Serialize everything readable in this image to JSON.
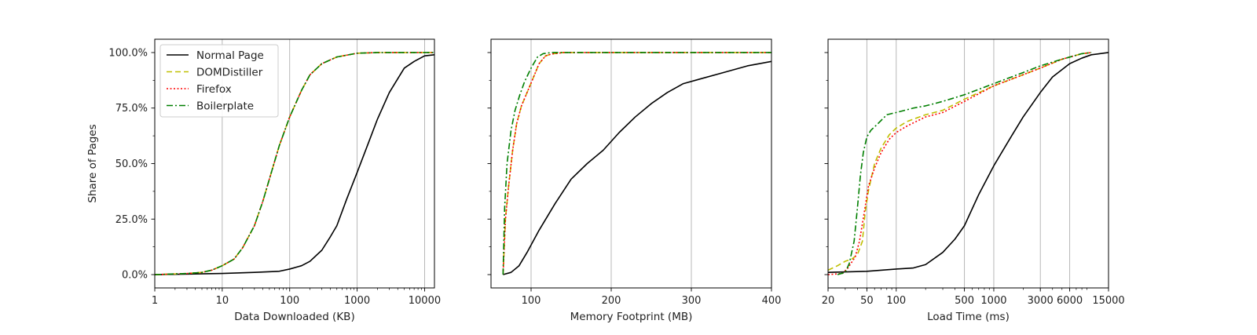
{
  "chart_data": [
    {
      "type": "line",
      "xlabel": "Data Downloaded (KB)",
      "ylabel": "Share of Pages",
      "xscale": "log",
      "xlim": [
        1,
        14000
      ],
      "ylim": [
        -0.06,
        1.06
      ],
      "xticks": [
        {
          "value": 1,
          "label": "1"
        },
        {
          "value": 10,
          "label": "10"
        },
        {
          "value": 100,
          "label": "100"
        },
        {
          "value": 1000,
          "label": "1000"
        },
        {
          "value": 10000,
          "label": "10000"
        }
      ],
      "yticks": [
        {
          "value": 0,
          "label": "0.0%"
        },
        {
          "value": 0.25,
          "label": "25.0%"
        },
        {
          "value": 0.5,
          "label": "50.0%"
        },
        {
          "value": 0.75,
          "label": "75.0%"
        },
        {
          "value": 1.0,
          "label": "100.0%"
        }
      ],
      "grid": "x",
      "legend_position": "top-left",
      "series": [
        {
          "name": "Normal Page",
          "color": "#000000",
          "style": "solid",
          "x": [
            1,
            10,
            30,
            70,
            100,
            150,
            200,
            300,
            400,
            500,
            700,
            1000,
            1500,
            2000,
            3000,
            5000,
            7000,
            10000,
            14000
          ],
          "y": [
            0,
            0.005,
            0.01,
            0.015,
            0.025,
            0.04,
            0.06,
            0.11,
            0.17,
            0.22,
            0.34,
            0.46,
            0.6,
            0.7,
            0.82,
            0.93,
            0.96,
            0.985,
            0.99
          ]
        },
        {
          "name": "DOMDistiller",
          "color": "#bfbf00",
          "style": "dashed",
          "x": [
            1,
            3,
            5,
            7,
            10,
            15,
            20,
            30,
            40,
            50,
            70,
            100,
            150,
            200,
            300,
            500,
            1000,
            2000,
            14000
          ],
          "y": [
            0,
            0.005,
            0.01,
            0.02,
            0.04,
            0.07,
            0.12,
            0.22,
            0.33,
            0.43,
            0.58,
            0.71,
            0.83,
            0.9,
            0.95,
            0.98,
            0.997,
            1.0,
            1.0
          ]
        },
        {
          "name": "Firefox",
          "color": "#ff0000",
          "style": "dotted",
          "x": [
            1,
            3,
            5,
            7,
            10,
            15,
            20,
            30,
            40,
            50,
            70,
            100,
            150,
            200,
            300,
            500,
            1000,
            2000,
            14000
          ],
          "y": [
            0,
            0.005,
            0.01,
            0.02,
            0.04,
            0.07,
            0.12,
            0.22,
            0.33,
            0.43,
            0.58,
            0.71,
            0.83,
            0.9,
            0.95,
            0.98,
            0.997,
            1.0,
            1.0
          ]
        },
        {
          "name": "Boilerplate",
          "color": "#007f00",
          "style": "dashdot",
          "x": [
            1,
            3,
            5,
            7,
            10,
            15,
            20,
            30,
            40,
            50,
            70,
            100,
            150,
            200,
            300,
            500,
            1000,
            2000,
            14000
          ],
          "y": [
            0,
            0.005,
            0.01,
            0.02,
            0.04,
            0.07,
            0.12,
            0.22,
            0.33,
            0.43,
            0.58,
            0.71,
            0.83,
            0.9,
            0.95,
            0.98,
            0.997,
            1.0,
            1.0
          ]
        }
      ]
    },
    {
      "type": "line",
      "xlabel": "Memory Footprint (MB)",
      "ylabel": "",
      "xscale": "linear",
      "xlim": [
        50,
        400
      ],
      "ylim": [
        -0.06,
        1.06
      ],
      "xticks": [
        {
          "value": 100,
          "label": "100"
        },
        {
          "value": 200,
          "label": "200"
        },
        {
          "value": 300,
          "label": "300"
        },
        {
          "value": 400,
          "label": "400"
        }
      ],
      "yticks": [
        {
          "value": 0,
          "label": ""
        },
        {
          "value": 0.25,
          "label": ""
        },
        {
          "value": 0.5,
          "label": ""
        },
        {
          "value": 0.75,
          "label": ""
        },
        {
          "value": 1.0,
          "label": ""
        }
      ],
      "grid": "x",
      "series": [
        {
          "name": "Normal Page",
          "color": "#000000",
          "style": "solid",
          "x": [
            65,
            75,
            85,
            95,
            110,
            130,
            150,
            170,
            190,
            210,
            230,
            250,
            270,
            290,
            310,
            340,
            370,
            400
          ],
          "y": [
            0,
            0.01,
            0.04,
            0.1,
            0.2,
            0.32,
            0.43,
            0.5,
            0.56,
            0.64,
            0.71,
            0.77,
            0.82,
            0.86,
            0.88,
            0.91,
            0.94,
            0.96
          ]
        },
        {
          "name": "DOMDistiller",
          "color": "#bfbf00",
          "style": "dashed",
          "x": [
            65,
            68,
            72,
            77,
            82,
            88,
            95,
            102,
            110,
            118,
            125,
            140,
            400
          ],
          "y": [
            0,
            0.25,
            0.4,
            0.56,
            0.68,
            0.76,
            0.82,
            0.88,
            0.95,
            0.985,
            0.993,
            1.0,
            1.0
          ]
        },
        {
          "name": "Firefox",
          "color": "#ff0000",
          "style": "dotted",
          "x": [
            65,
            68,
            72,
            77,
            82,
            88,
            95,
            102,
            110,
            118,
            125,
            140,
            400
          ],
          "y": [
            0,
            0.25,
            0.4,
            0.56,
            0.68,
            0.76,
            0.82,
            0.88,
            0.95,
            0.985,
            0.993,
            1.0,
            1.0
          ]
        },
        {
          "name": "Boilerplate",
          "color": "#007f00",
          "style": "dashdot",
          "x": [
            65,
            67,
            70,
            75,
            80,
            86,
            92,
            100,
            108,
            115,
            125,
            400
          ],
          "y": [
            0,
            0.3,
            0.5,
            0.65,
            0.74,
            0.81,
            0.87,
            0.93,
            0.98,
            0.995,
            1.0,
            1.0
          ]
        }
      ]
    },
    {
      "type": "line",
      "xlabel": "Load Time (ms)",
      "ylabel": "",
      "xscale": "log",
      "xlim": [
        20,
        15000
      ],
      "ylim": [
        -0.06,
        1.06
      ],
      "xticks": [
        {
          "value": 20,
          "label": "20"
        },
        {
          "value": 50,
          "label": "50"
        },
        {
          "value": 100,
          "label": "100"
        },
        {
          "value": 500,
          "label": "500"
        },
        {
          "value": 1000,
          "label": "1000"
        },
        {
          "value": 3000,
          "label": "3000"
        },
        {
          "value": 6000,
          "label": "6000"
        },
        {
          "value": 15000,
          "label": "15000"
        }
      ],
      "yticks": [
        {
          "value": 0,
          "label": ""
        },
        {
          "value": 0.25,
          "label": ""
        },
        {
          "value": 0.5,
          "label": ""
        },
        {
          "value": 0.75,
          "label": ""
        },
        {
          "value": 1.0,
          "label": ""
        }
      ],
      "grid": "x",
      "series": [
        {
          "name": "Normal Page",
          "color": "#000000",
          "style": "solid",
          "x": [
            20,
            50,
            100,
            150,
            200,
            300,
            400,
            500,
            700,
            1000,
            1500,
            2000,
            3000,
            4000,
            6000,
            8000,
            10000,
            15000
          ],
          "y": [
            0.01,
            0.015,
            0.025,
            0.03,
            0.045,
            0.1,
            0.16,
            0.22,
            0.36,
            0.49,
            0.62,
            0.71,
            0.82,
            0.89,
            0.95,
            0.975,
            0.99,
            1.0
          ]
        },
        {
          "name": "DOMDistiller",
          "color": "#bfbf00",
          "style": "dashed",
          "x": [
            20,
            25,
            30,
            35,
            40,
            45,
            48,
            52,
            60,
            70,
            85,
            100,
            130,
            200,
            300,
            500,
            1000,
            2000,
            3000,
            5000,
            8000,
            10000
          ],
          "y": [
            0.02,
            0.04,
            0.06,
            0.07,
            0.09,
            0.15,
            0.28,
            0.38,
            0.5,
            0.57,
            0.63,
            0.66,
            0.69,
            0.72,
            0.74,
            0.79,
            0.85,
            0.9,
            0.93,
            0.97,
            0.995,
            1.0
          ]
        },
        {
          "name": "Firefox",
          "color": "#ff0000",
          "style": "dotted",
          "x": [
            20,
            28,
            32,
            38,
            42,
            47,
            52,
            60,
            70,
            85,
            100,
            130,
            200,
            300,
            500,
            1000,
            2000,
            3000,
            5000,
            8000,
            10000
          ],
          "y": [
            0,
            0.005,
            0.03,
            0.08,
            0.15,
            0.28,
            0.4,
            0.48,
            0.55,
            0.61,
            0.64,
            0.67,
            0.71,
            0.73,
            0.78,
            0.85,
            0.9,
            0.93,
            0.97,
            0.995,
            1.0
          ]
        },
        {
          "name": "Boilerplate",
          "color": "#007f00",
          "style": "dashdot",
          "x": [
            25,
            30,
            33,
            37,
            40,
            43,
            46,
            50,
            55,
            65,
            80,
            100,
            150,
            200,
            300,
            500,
            1000,
            2000,
            3000,
            5000,
            8000,
            10000
          ],
          "y": [
            0,
            0.01,
            0.05,
            0.15,
            0.3,
            0.45,
            0.55,
            0.62,
            0.65,
            0.68,
            0.72,
            0.73,
            0.75,
            0.76,
            0.78,
            0.81,
            0.86,
            0.91,
            0.94,
            0.97,
            0.995,
            1.0
          ]
        }
      ]
    }
  ]
}
